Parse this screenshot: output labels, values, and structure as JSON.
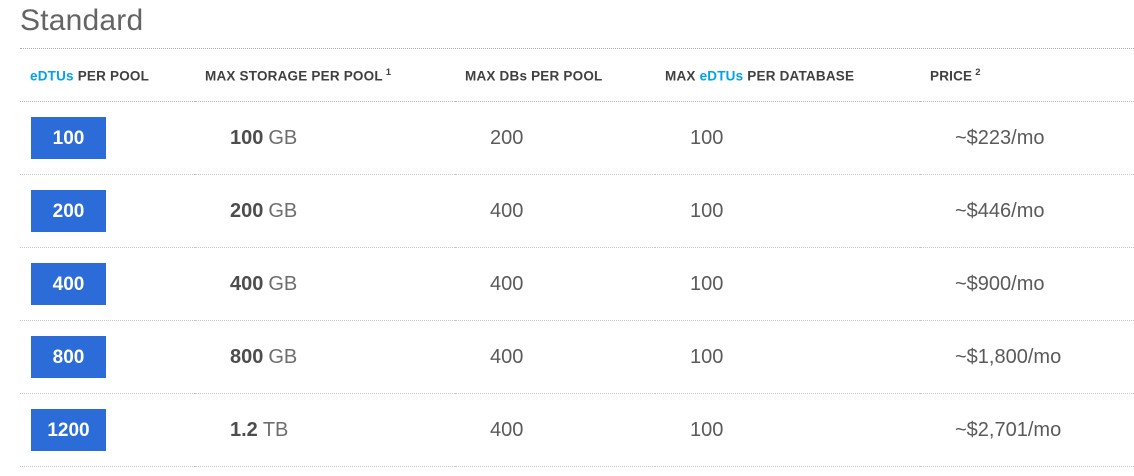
{
  "section": {
    "title": "Standard"
  },
  "colors": {
    "accent_blue": "#00a2ed",
    "tier_button_blue": "#2b6cd8",
    "header_text": "#404040",
    "value_text": "#5a5a5a"
  },
  "table": {
    "columns": [
      {
        "pre": "",
        "accent": "eDTUs",
        "post": " PER POOL",
        "sup": ""
      },
      {
        "pre": "MAX STORAGE PER POOL",
        "accent": "",
        "post": "",
        "sup": "1"
      },
      {
        "pre": "MAX DBs PER POOL",
        "accent": "",
        "post": "",
        "sup": ""
      },
      {
        "pre": "MAX ",
        "accent": "eDTUs",
        "post": " PER DATABASE",
        "sup": ""
      },
      {
        "pre": "PRICE",
        "accent": "",
        "post": "",
        "sup": "2"
      }
    ],
    "rows": [
      {
        "edtus_per_pool": "100",
        "storage_value": "100",
        "storage_unit": "GB",
        "max_dbs_per_pool": "200",
        "max_edtus_per_database": "100",
        "price": "~$223/mo"
      },
      {
        "edtus_per_pool": "200",
        "storage_value": "200",
        "storage_unit": "GB",
        "max_dbs_per_pool": "400",
        "max_edtus_per_database": "100",
        "price": "~$446/mo"
      },
      {
        "edtus_per_pool": "400",
        "storage_value": "400",
        "storage_unit": "GB",
        "max_dbs_per_pool": "400",
        "max_edtus_per_database": "100",
        "price": "~$900/mo"
      },
      {
        "edtus_per_pool": "800",
        "storage_value": "800",
        "storage_unit": "GB",
        "max_dbs_per_pool": "400",
        "max_edtus_per_database": "100",
        "price": "~$1,800/mo"
      },
      {
        "edtus_per_pool": "1200",
        "storage_value": "1.2",
        "storage_unit": "TB",
        "max_dbs_per_pool": "400",
        "max_edtus_per_database": "100",
        "price": "~$2,701/mo"
      }
    ]
  }
}
